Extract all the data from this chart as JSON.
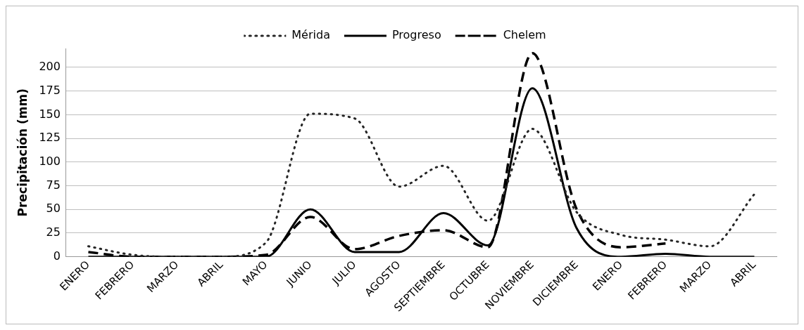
{
  "chart_data": {
    "type": "line",
    "ylabel": "Precipitación (mm)",
    "categories": [
      "ENERO",
      "FEBRERO",
      "MARZO",
      "ABRIL",
      "MAYO",
      "JUNIO",
      "JULIO",
      "AGOSTO",
      "SEPTIEMBRE",
      "OCTUBRE",
      "NOVIEMBRE",
      "DICIEMBRE",
      "ENERO",
      "FEBRERO",
      "MARZO",
      "ABRIL"
    ],
    "series": [
      {
        "name": "Mérida",
        "color": "#262626",
        "line_style": "dotted",
        "values": [
          11,
          2,
          0,
          0,
          15,
          151,
          146,
          74,
          96,
          38,
          135,
          47,
          23,
          18,
          11,
          66
        ]
      },
      {
        "name": "Progreso",
        "color": "#000000",
        "line_style": "solid",
        "values": [
          0,
          0,
          0,
          0,
          0,
          50,
          5,
          5,
          46,
          12,
          178,
          30,
          0,
          3,
          0,
          0
        ]
      },
      {
        "name": "Chelem",
        "color": "#000000",
        "line_style": "dashed",
        "values": [
          5,
          0,
          0,
          0,
          2,
          42,
          8,
          22,
          28,
          10,
          215,
          50,
          10,
          14,
          null,
          null
        ]
      }
    ],
    "ylim": [
      0,
      220
    ],
    "yticks": [
      0,
      25,
      50,
      75,
      100,
      125,
      150,
      175,
      200
    ],
    "grid": "y",
    "legend": "top",
    "marker": "none"
  }
}
